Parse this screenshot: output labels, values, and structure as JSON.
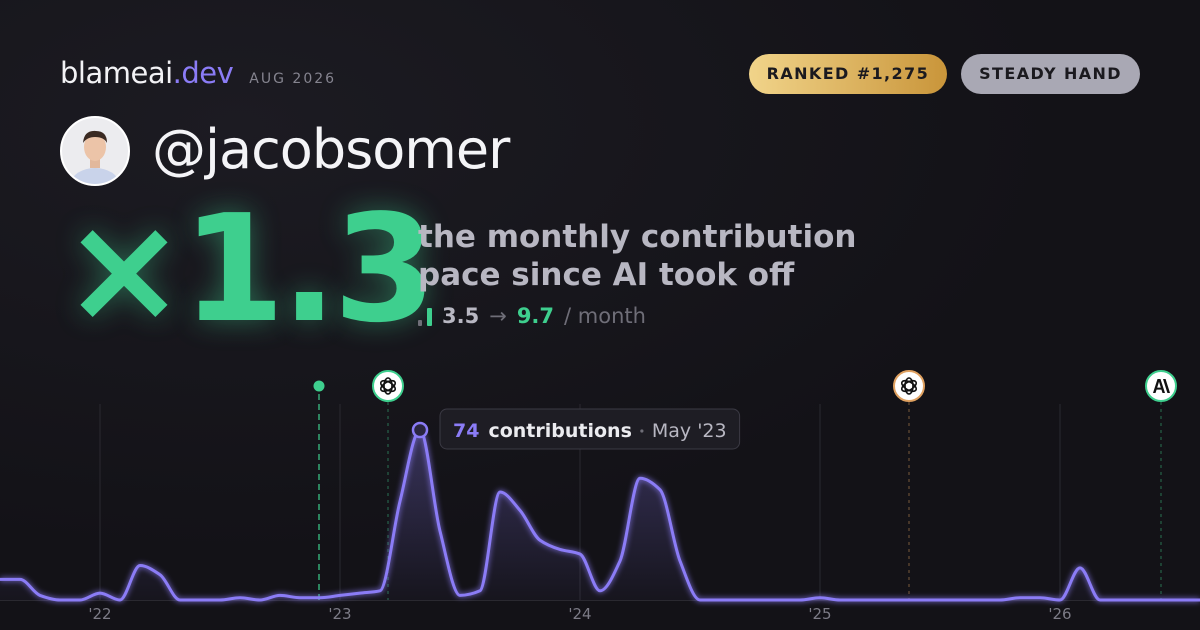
{
  "header": {
    "brand": "blameai",
    "brand_tld": ".dev",
    "date": "AUG 2026",
    "badges": [
      "RANKED #1,275",
      "STEADY HAND"
    ],
    "handle": "@jacobsomer",
    "multiplier": "×1.3",
    "description": [
      "the monthly contribution",
      "pace since AI took off"
    ],
    "pace_from": "3.5",
    "arrow": "→",
    "pace_to": "9.7",
    "pace_unit": "/ month"
  },
  "chart_data": {
    "type": "area",
    "color": "#8b7cf6",
    "grid": true,
    "categories": [
      null,
      null,
      null,
      null,
      null,
      "'22",
      null,
      null,
      null,
      null,
      null,
      null,
      null,
      null,
      null,
      null,
      null,
      "'23",
      null,
      null,
      null,
      null,
      null,
      null,
      null,
      null,
      null,
      null,
      null,
      "'24",
      null,
      null,
      null,
      null,
      null,
      null,
      null,
      null,
      null,
      null,
      null,
      "'25",
      null,
      null,
      null,
      null,
      null,
      null,
      null,
      null,
      null,
      null,
      null,
      "'26",
      null,
      null,
      null,
      null,
      null,
      null,
      null
    ],
    "values": [
      9,
      9,
      2,
      0,
      0,
      3,
      0,
      15,
      11,
      0,
      0,
      0,
      1,
      0,
      2,
      1,
      1,
      2,
      3,
      4,
      43,
      74,
      30,
      2,
      4,
      47,
      39,
      26,
      22,
      20,
      4,
      17,
      53,
      48,
      17,
      0,
      0,
      0,
      0,
      0,
      0,
      1,
      0,
      0,
      0,
      0,
      0,
      0,
      0,
      0,
      0,
      1,
      1,
      0,
      14,
      0,
      0,
      0,
      0,
      0,
      0
    ],
    "tooltip": {
      "label": "contributions",
      "date": "May '23"
    }
  }
}
